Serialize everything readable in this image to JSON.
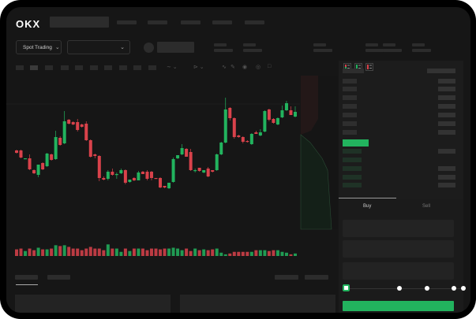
{
  "header": {
    "logo": "OKX",
    "product_select": "Spot Trading"
  },
  "colors": {
    "up": "#22b35e",
    "down": "#d9424b",
    "accent": "#22b35e"
  },
  "icons": [
    "chevron-down-icon",
    "camera-icon",
    "settings-icon",
    "fullscreen-icon",
    "orderbook-both-icon",
    "orderbook-bids-icon",
    "orderbook-asks-icon"
  ],
  "chart": {
    "type": "candlestick",
    "candles": [
      [
        118,
        119,
        114,
        115
      ],
      [
        118,
        119,
        108,
        109
      ],
      [
        107,
        108,
        107,
        108
      ],
      [
        108,
        113,
        93,
        94
      ],
      [
        93,
        94,
        88,
        89
      ],
      [
        87,
        100,
        84,
        100
      ],
      [
        102,
        103,
        93,
        94
      ],
      [
        98,
        115,
        97,
        114
      ],
      [
        113,
        114,
        105,
        106
      ],
      [
        107,
        143,
        106,
        135
      ],
      [
        134,
        136,
        124,
        125
      ],
      [
        127,
        168,
        126,
        155
      ],
      [
        157,
        158,
        151,
        152
      ],
      [
        154,
        155,
        150,
        151
      ],
      [
        154,
        158,
        142,
        144
      ],
      [
        151,
        152,
        147,
        148
      ],
      [
        152,
        155,
        130,
        131
      ],
      [
        131,
        132,
        109,
        110
      ],
      [
        113,
        114,
        108,
        111
      ],
      [
        111,
        112,
        79,
        83
      ],
      [
        83,
        85,
        80,
        81
      ],
      [
        82,
        93,
        80,
        91
      ],
      [
        91,
        95,
        86,
        87
      ],
      [
        87,
        90,
        82,
        88
      ],
      [
        89,
        95,
        88,
        93
      ],
      [
        93,
        94,
        75,
        77
      ],
      [
        78,
        81,
        77,
        81
      ],
      [
        83,
        84,
        79,
        80
      ],
      [
        80,
        92,
        80,
        90
      ],
      [
        91,
        92,
        88,
        88
      ],
      [
        91,
        93,
        80,
        82
      ],
      [
        91,
        92,
        80,
        83
      ],
      [
        83,
        83,
        82,
        82
      ],
      [
        83,
        84,
        70,
        71
      ],
      [
        73,
        73,
        70,
        71
      ],
      [
        70,
        77,
        69,
        77
      ],
      [
        78,
        109,
        77,
        107
      ],
      [
        108,
        112,
        107,
        112
      ],
      [
        113,
        126,
        112,
        121
      ],
      [
        120,
        121,
        110,
        110
      ],
      [
        116,
        120,
        92,
        93
      ],
      [
        92,
        95,
        90,
        93
      ],
      [
        96,
        96,
        91,
        92
      ],
      [
        90,
        93,
        89,
        93
      ],
      [
        95,
        97,
        84,
        85
      ],
      [
        93,
        93,
        90,
        91
      ],
      [
        93,
        114,
        92,
        113
      ],
      [
        113,
        129,
        112,
        128
      ],
      [
        128,
        185,
        127,
        170
      ],
      [
        172,
        173,
        156,
        159
      ],
      [
        159,
        160,
        133,
        135
      ],
      [
        137,
        138,
        134,
        135
      ],
      [
        135,
        136,
        127,
        129
      ],
      [
        130,
        131,
        128,
        129
      ],
      [
        126,
        140,
        125,
        139
      ],
      [
        141,
        143,
        139,
        139
      ],
      [
        137,
        145,
        136,
        141
      ],
      [
        142,
        169,
        141,
        168
      ],
      [
        170,
        171,
        155,
        157
      ],
      [
        158,
        159,
        152,
        153
      ],
      [
        151,
        160,
        150,
        159
      ],
      [
        160,
        175,
        159,
        169
      ],
      [
        169,
        181,
        168,
        178
      ],
      [
        169,
        174,
        163,
        163
      ],
      [
        161,
        174,
        160,
        167
      ]
    ],
    "volume": [
      8,
      9,
      6,
      9,
      7,
      10,
      8,
      8,
      9,
      13,
      12,
      13,
      11,
      9,
      9,
      7,
      9,
      11,
      9,
      9,
      7,
      14,
      9,
      9,
      5,
      9,
      6,
      9,
      9,
      9,
      7,
      9,
      9,
      8,
      9,
      9,
      10,
      9,
      7,
      9,
      6,
      9,
      7,
      8,
      7,
      8,
      9,
      4,
      2,
      3,
      5,
      5,
      5,
      5,
      5,
      7,
      7,
      7,
      6,
      7,
      7,
      5,
      4,
      2,
      3
    ]
  },
  "orderbook": {
    "bid_rows_highlighted": 1
  },
  "trade": {
    "tabs": [
      "Buy",
      "Sell"
    ],
    "active_tab": "Buy",
    "slider_value_percent": 0,
    "slider_stops": 5
  }
}
